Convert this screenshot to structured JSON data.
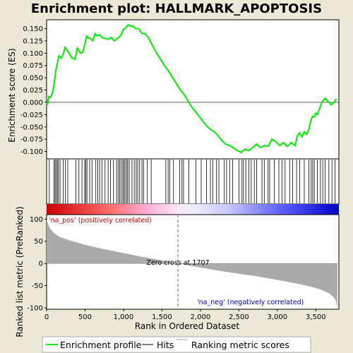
{
  "chart_data": {
    "type": "line",
    "title": "Enrichment plot: HALLMARK_APOPTOSIS",
    "xlabel": "Rank in Ordered Dataset",
    "xlim": [
      0,
      3800
    ],
    "x_ticks": [
      0,
      500,
      1000,
      1500,
      2000,
      2500,
      3000,
      3500
    ],
    "x_tick_labels": [
      "0",
      "500",
      "1,000",
      "1,500",
      "2,000",
      "2,500",
      "3,000",
      "3,500"
    ],
    "enrichment_panel": {
      "ylabel": "Enrichment score (ES)",
      "ylim": [
        -0.115,
        0.168
      ],
      "y_ticks": [
        -0.1,
        -0.075,
        -0.05,
        -0.025,
        0.0,
        0.025,
        0.05,
        0.075,
        0.1,
        0.125,
        0.15
      ],
      "y_tick_labels": [
        "-0.100",
        "-0.075",
        "-0.050",
        "-0.025",
        "0.000",
        "0.025",
        "0.050",
        "0.075",
        "0.100",
        "0.125",
        "0.150"
      ],
      "series": [
        {
          "name": "Enrichment profile",
          "color": "#00ee00",
          "x": [
            0,
            10,
            30,
            50,
            80,
            100,
            120,
            140,
            160,
            190,
            220,
            240,
            260,
            290,
            330,
            370,
            400,
            420,
            440,
            470,
            500,
            520,
            540,
            570,
            600,
            630,
            660,
            690,
            720,
            760,
            800,
            840,
            880,
            920,
            960,
            1000,
            1030,
            1060,
            1090,
            1120,
            1160,
            1200,
            1240,
            1280,
            1330,
            1380,
            1430,
            1480,
            1530,
            1580,
            1630,
            1680,
            1730,
            1780,
            1830,
            1880,
            1930,
            1980,
            2030,
            2080,
            2130,
            2180,
            2230,
            2280,
            2330,
            2380,
            2430,
            2480,
            2530,
            2580,
            2630,
            2680,
            2730,
            2780,
            2830,
            2880,
            2930,
            2980,
            3030,
            3080,
            3130,
            3180,
            3230,
            3260,
            3290,
            3320,
            3350,
            3380,
            3410,
            3440,
            3460,
            3480,
            3500,
            3520,
            3550,
            3580,
            3620,
            3660,
            3700,
            3740,
            3760,
            3770
          ],
          "y": [
            0.0,
            -0.005,
            0.012,
            0.01,
            0.02,
            0.04,
            0.065,
            0.08,
            0.095,
            0.09,
            0.1,
            0.112,
            0.108,
            0.1,
            0.09,
            0.088,
            0.11,
            0.105,
            0.1,
            0.102,
            0.12,
            0.135,
            0.132,
            0.13,
            0.125,
            0.14,
            0.135,
            0.138,
            0.132,
            0.13,
            0.128,
            0.132,
            0.125,
            0.13,
            0.135,
            0.148,
            0.152,
            0.158,
            0.155,
            0.155,
            0.15,
            0.15,
            0.14,
            0.14,
            0.13,
            0.115,
            0.1,
            0.088,
            0.075,
            0.065,
            0.052,
            0.04,
            0.027,
            0.018,
            0.005,
            -0.008,
            -0.018,
            -0.028,
            -0.038,
            -0.048,
            -0.055,
            -0.06,
            -0.068,
            -0.078,
            -0.085,
            -0.088,
            -0.093,
            -0.098,
            -0.102,
            -0.095,
            -0.098,
            -0.092,
            -0.085,
            -0.092,
            -0.088,
            -0.09,
            -0.075,
            -0.08,
            -0.088,
            -0.082,
            -0.09,
            -0.082,
            -0.088,
            -0.068,
            -0.062,
            -0.07,
            -0.06,
            -0.065,
            -0.055,
            -0.035,
            -0.028,
            -0.03,
            -0.022,
            -0.025,
            -0.012,
            0.0,
            0.008,
            0.002,
            -0.005,
            0.0,
            0.006,
            0.005
          ]
        }
      ]
    },
    "hits_panel": {
      "series_name": "Hits",
      "positions": [
        35,
        95,
        110,
        125,
        140,
        155,
        175,
        215,
        245,
        275,
        380,
        420,
        460,
        495,
        510,
        525,
        560,
        590,
        640,
        665,
        690,
        720,
        760,
        800,
        830,
        870,
        910,
        930,
        950,
        970,
        990,
        1005,
        1020,
        1040,
        1055,
        1075,
        1110,
        1140,
        1165,
        1185,
        1210,
        1240,
        1260,
        1310,
        1360,
        1550,
        1580,
        1600,
        1650,
        1730,
        1760,
        1780,
        1850,
        1940,
        2010,
        2080,
        2130,
        2160,
        2210,
        2240,
        2310,
        2340,
        2380,
        2420,
        2500,
        2540,
        2560,
        2590,
        2630,
        2660,
        2700,
        2730,
        2800,
        2830,
        2880,
        2900,
        2960,
        3020,
        3060,
        3100,
        3160,
        3200,
        3250,
        3290,
        3350,
        3410,
        3440,
        3460,
        3480,
        3520,
        3560,
        3590,
        3620,
        3670,
        3710,
        3750
      ]
    },
    "ranking_panel": {
      "series_name": "Ranking metric scores",
      "ylabel": "Ranked list metric (PreRanked)",
      "ylim": [
        -103,
        110
      ],
      "y_ticks": [
        -100,
        -50,
        0,
        50,
        100
      ],
      "y_tick_labels": [
        "-100",
        "-50",
        "0",
        "50",
        "100"
      ],
      "curve_x": [
        0,
        20,
        50,
        100,
        150,
        200,
        300,
        400,
        500,
        700,
        900,
        1100,
        1300,
        1500,
        1707,
        1900,
        2100,
        2300,
        2500,
        2700,
        2900,
        3100,
        3300,
        3450,
        3550,
        3620,
        3680,
        3720,
        3750,
        3770,
        3780
      ],
      "curve_y": [
        100,
        88,
        78,
        68,
        62,
        58,
        52,
        47,
        42,
        34,
        27,
        20,
        13,
        7,
        0,
        -6,
        -12,
        -18,
        -23,
        -28,
        -34,
        -40,
        -47,
        -53,
        -58,
        -63,
        -68,
        -74,
        -80,
        -88,
        -100
      ],
      "zero_cross_rank": 1707,
      "zero_cross_label": "Zero cross at 1707",
      "pos_label": "'na_pos' (positively correlated)",
      "neg_label": "'na_neg' (negatively correlated)",
      "pos_color": "#cc0000",
      "neg_color": "#0000cc"
    },
    "legend": {
      "placement": "bottom",
      "items": [
        {
          "label": "Enrichment profile",
          "color": "#00ee00",
          "kind": "line"
        },
        {
          "label": "Hits",
          "color": "#000000",
          "kind": "line"
        },
        {
          "label": "Ranking metric scores",
          "color": "#aaaaaa",
          "kind": "line"
        }
      ]
    }
  }
}
